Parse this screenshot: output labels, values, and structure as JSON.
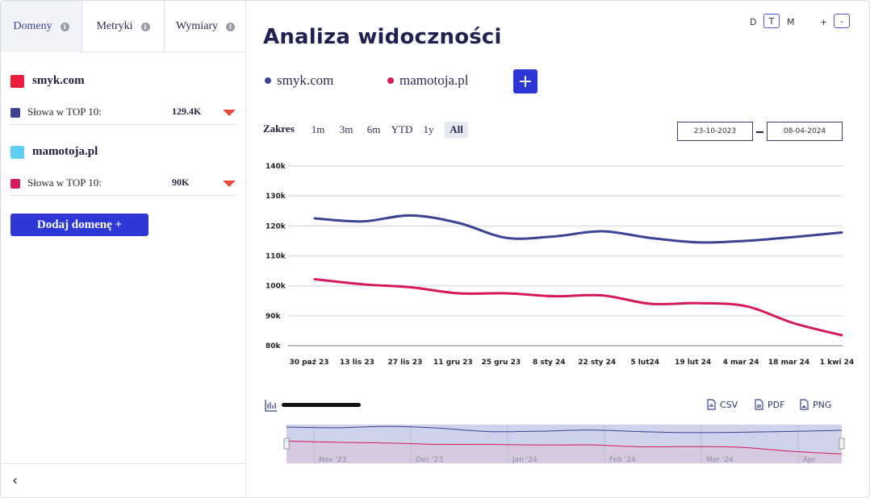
{
  "sidebar": {
    "tabs": [
      {
        "label": "Domeny"
      },
      {
        "label": "Metryki"
      },
      {
        "label": "Wymiary"
      }
    ],
    "domains": [
      {
        "name": "smyk.com",
        "color": "#ee1c3b",
        "metric_label": "Słowa w TOP 10:",
        "metric_value": "129.4K",
        "metric_color": "#3a4394"
      },
      {
        "name": "mamotoja.pl",
        "color": "#5ecff3",
        "metric_label": "Słowa w TOP 10:",
        "metric_value": "90K",
        "metric_color": "#d61d60"
      }
    ],
    "add_domain_label": "Dodaj domenę +",
    "collapse_icon": "‹"
  },
  "header": {
    "title": "Analiza widoczności",
    "granularity": [
      "D",
      "T",
      "M"
    ],
    "granularity_selected": "T",
    "zoom": [
      "+",
      "-"
    ]
  },
  "legend": [
    {
      "name": "smyk.com",
      "color": "#3a4394"
    },
    {
      "name": "mamotoja.pl",
      "color": "#cc1f5c"
    }
  ],
  "range": {
    "label": "Zakres",
    "options": [
      "1m",
      "3m",
      "6m",
      "YTD",
      "1y",
      "All"
    ],
    "selected": "All",
    "from": "23-10-2023",
    "to": "08-04-2024"
  },
  "exports": [
    {
      "label": "CSV"
    },
    {
      "label": "PDF"
    },
    {
      "label": "PNG"
    }
  ],
  "chart_data": {
    "type": "line",
    "title": "",
    "x": [
      "30 paź 23",
      "13 lis 23",
      "27 lis 23",
      "11 gru 23",
      "25 gru 23",
      "8 sty 24",
      "22 sty 24",
      "5 lut24",
      "19 lut 24",
      "4 mar 24",
      "18 mar 24",
      "1 kwi 24"
    ],
    "y_ticks": [
      "80k",
      "90k",
      "100k",
      "110k",
      "120k",
      "130k",
      "140k"
    ],
    "ylim": [
      80000,
      140000
    ],
    "series": [
      {
        "name": "smyk.com",
        "color": "#3a4394",
        "values": [
          122500,
          121500,
          123500,
          121000,
          116000,
          116500,
          118200,
          116000,
          114500,
          115000,
          116300,
          117800
        ]
      },
      {
        "name": "mamotoja.pl",
        "color": "#d6175c",
        "values": [
          102200,
          100500,
          99500,
          97500,
          97500,
          96500,
          96800,
          94000,
          94200,
          93200,
          87500,
          83500
        ]
      }
    ],
    "navigator_labels": [
      "Nov '23",
      "Dec '23",
      "Jan '24",
      "Feb '24",
      "Mar '24",
      "Apr"
    ]
  }
}
